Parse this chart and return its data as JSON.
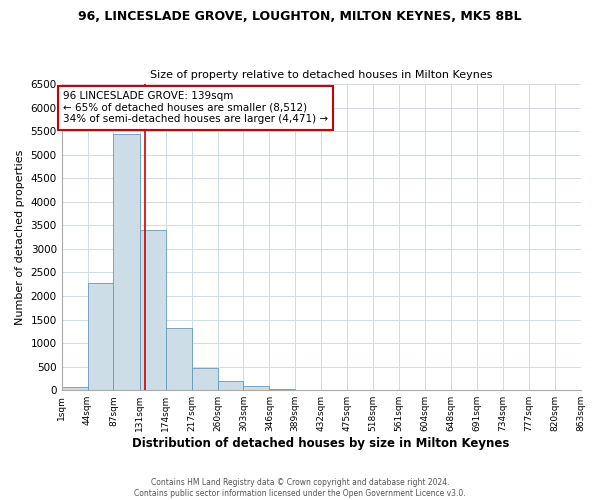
{
  "title": "96, LINCESLADE GROVE, LOUGHTON, MILTON KEYNES, MK5 8BL",
  "subtitle": "Size of property relative to detached houses in Milton Keynes",
  "xlabel": "Distribution of detached houses by size in Milton Keynes",
  "ylabel": "Number of detached properties",
  "bar_color": "#ccdde8",
  "bar_edge_color": "#6699bb",
  "bin_edges": [
    1,
    44,
    87,
    131,
    174,
    217,
    260,
    303,
    346,
    389,
    432,
    475,
    518,
    561,
    604,
    648,
    691,
    734,
    777,
    820,
    863
  ],
  "bar_heights": [
    70,
    2280,
    5430,
    3400,
    1320,
    480,
    190,
    85,
    35,
    15,
    8,
    4,
    2,
    1,
    1,
    0,
    0,
    0,
    0,
    0
  ],
  "tick_labels": [
    "1sqm",
    "44sqm",
    "87sqm",
    "131sqm",
    "174sqm",
    "217sqm",
    "260sqm",
    "303sqm",
    "346sqm",
    "389sqm",
    "432sqm",
    "475sqm",
    "518sqm",
    "561sqm",
    "604sqm",
    "648sqm",
    "691sqm",
    "734sqm",
    "777sqm",
    "820sqm",
    "863sqm"
  ],
  "property_line_x": 139,
  "property_line_color": "#cc0000",
  "annotation_line1": "96 LINCESLADE GROVE: 139sqm",
  "annotation_line2": "← 65% of detached houses are smaller (8,512)",
  "annotation_line3": "34% of semi-detached houses are larger (4,471) →",
  "annotation_box_facecolor": "#ffffff",
  "annotation_box_edgecolor": "#cc0000",
  "ylim": [
    0,
    6500
  ],
  "yticks": [
    0,
    500,
    1000,
    1500,
    2000,
    2500,
    3000,
    3500,
    4000,
    4500,
    5000,
    5500,
    6000,
    6500
  ],
  "footer_line1": "Contains HM Land Registry data © Crown copyright and database right 2024.",
  "footer_line2": "Contains public sector information licensed under the Open Government Licence v3.0.",
  "background_color": "#ffffff",
  "grid_color": "#ccdde8"
}
